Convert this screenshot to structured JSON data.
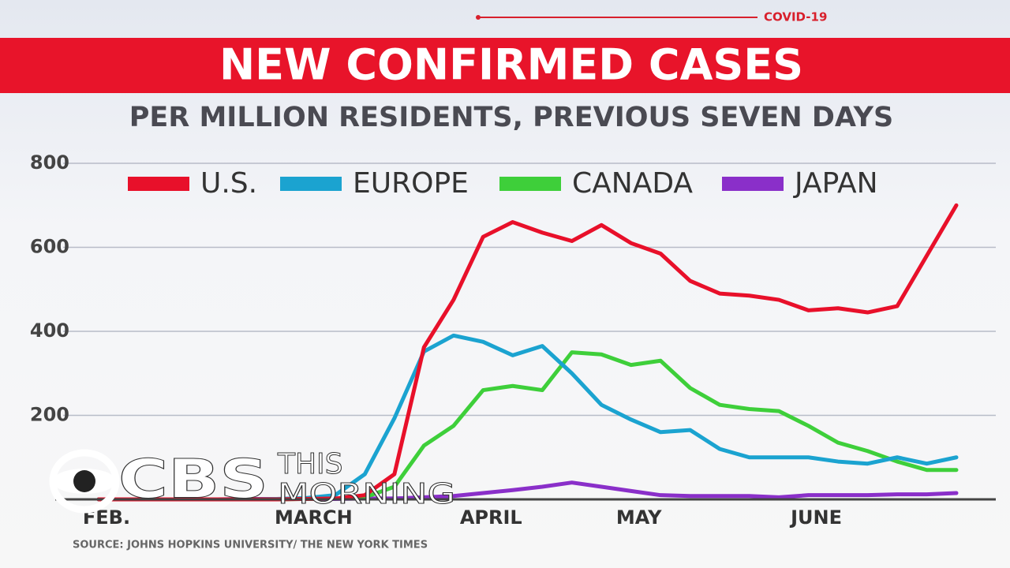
{
  "header": {
    "tag": "COVID-19"
  },
  "chart_data": {
    "type": "line",
    "title": "NEW CONFIRMED CASES",
    "subtitle": "PER MILLION RESIDENTS, PREVIOUS SEVEN DAYS",
    "source": "SOURCE: JOHNS HOPKINS UNIVERSITY/ THE NEW YORK TIMES",
    "categories": [
      "FEB.",
      null,
      null,
      null,
      null,
      null,
      null,
      "MARCH",
      null,
      null,
      null,
      null,
      null,
      "APRIL",
      null,
      null,
      null,
      null,
      "MAY",
      null,
      null,
      null,
      null,
      null,
      "JUNE",
      null,
      null,
      null,
      null,
      null
    ],
    "ylim": [
      0,
      800
    ],
    "yticks": [
      200,
      400,
      600,
      800
    ],
    "grid": true,
    "series": [
      {
        "name": "U.S.",
        "color": "#e8102a",
        "values": [
          0,
          0,
          0,
          0,
          0,
          0,
          0,
          1,
          2,
          10,
          60,
          362,
          475,
          625,
          660,
          635,
          615,
          653,
          610,
          585,
          520,
          490,
          485,
          475,
          450,
          455,
          445,
          460,
          580,
          700
        ]
      },
      {
        "name": "EUROPE",
        "color": "#1ba3d0",
        "values": [
          0,
          0,
          0,
          0,
          0,
          0,
          1,
          3,
          10,
          60,
          193,
          352,
          390,
          375,
          343,
          365,
          300,
          225,
          190,
          160,
          165,
          120,
          100,
          100,
          100,
          90,
          85,
          100,
          85,
          100
        ]
      },
      {
        "name": "CANADA",
        "color": "#3ecf3a",
        "values": [
          0,
          0,
          0,
          0,
          0,
          0,
          0,
          1,
          2,
          5,
          30,
          128,
          175,
          260,
          270,
          260,
          350,
          345,
          320,
          330,
          265,
          225,
          215,
          210,
          175,
          135,
          115,
          90,
          70,
          70
        ]
      },
      {
        "name": "JAPAN",
        "color": "#8a2fc9",
        "values": [
          0,
          0,
          0,
          0,
          0,
          1,
          1,
          1,
          1,
          2,
          2,
          5,
          8,
          15,
          22,
          30,
          40,
          30,
          20,
          10,
          8,
          8,
          8,
          5,
          10,
          10,
          10,
          12,
          12,
          15
        ]
      }
    ]
  },
  "logo": {
    "main": "CBS",
    "line1": "THIS",
    "line2": "MORNING"
  }
}
